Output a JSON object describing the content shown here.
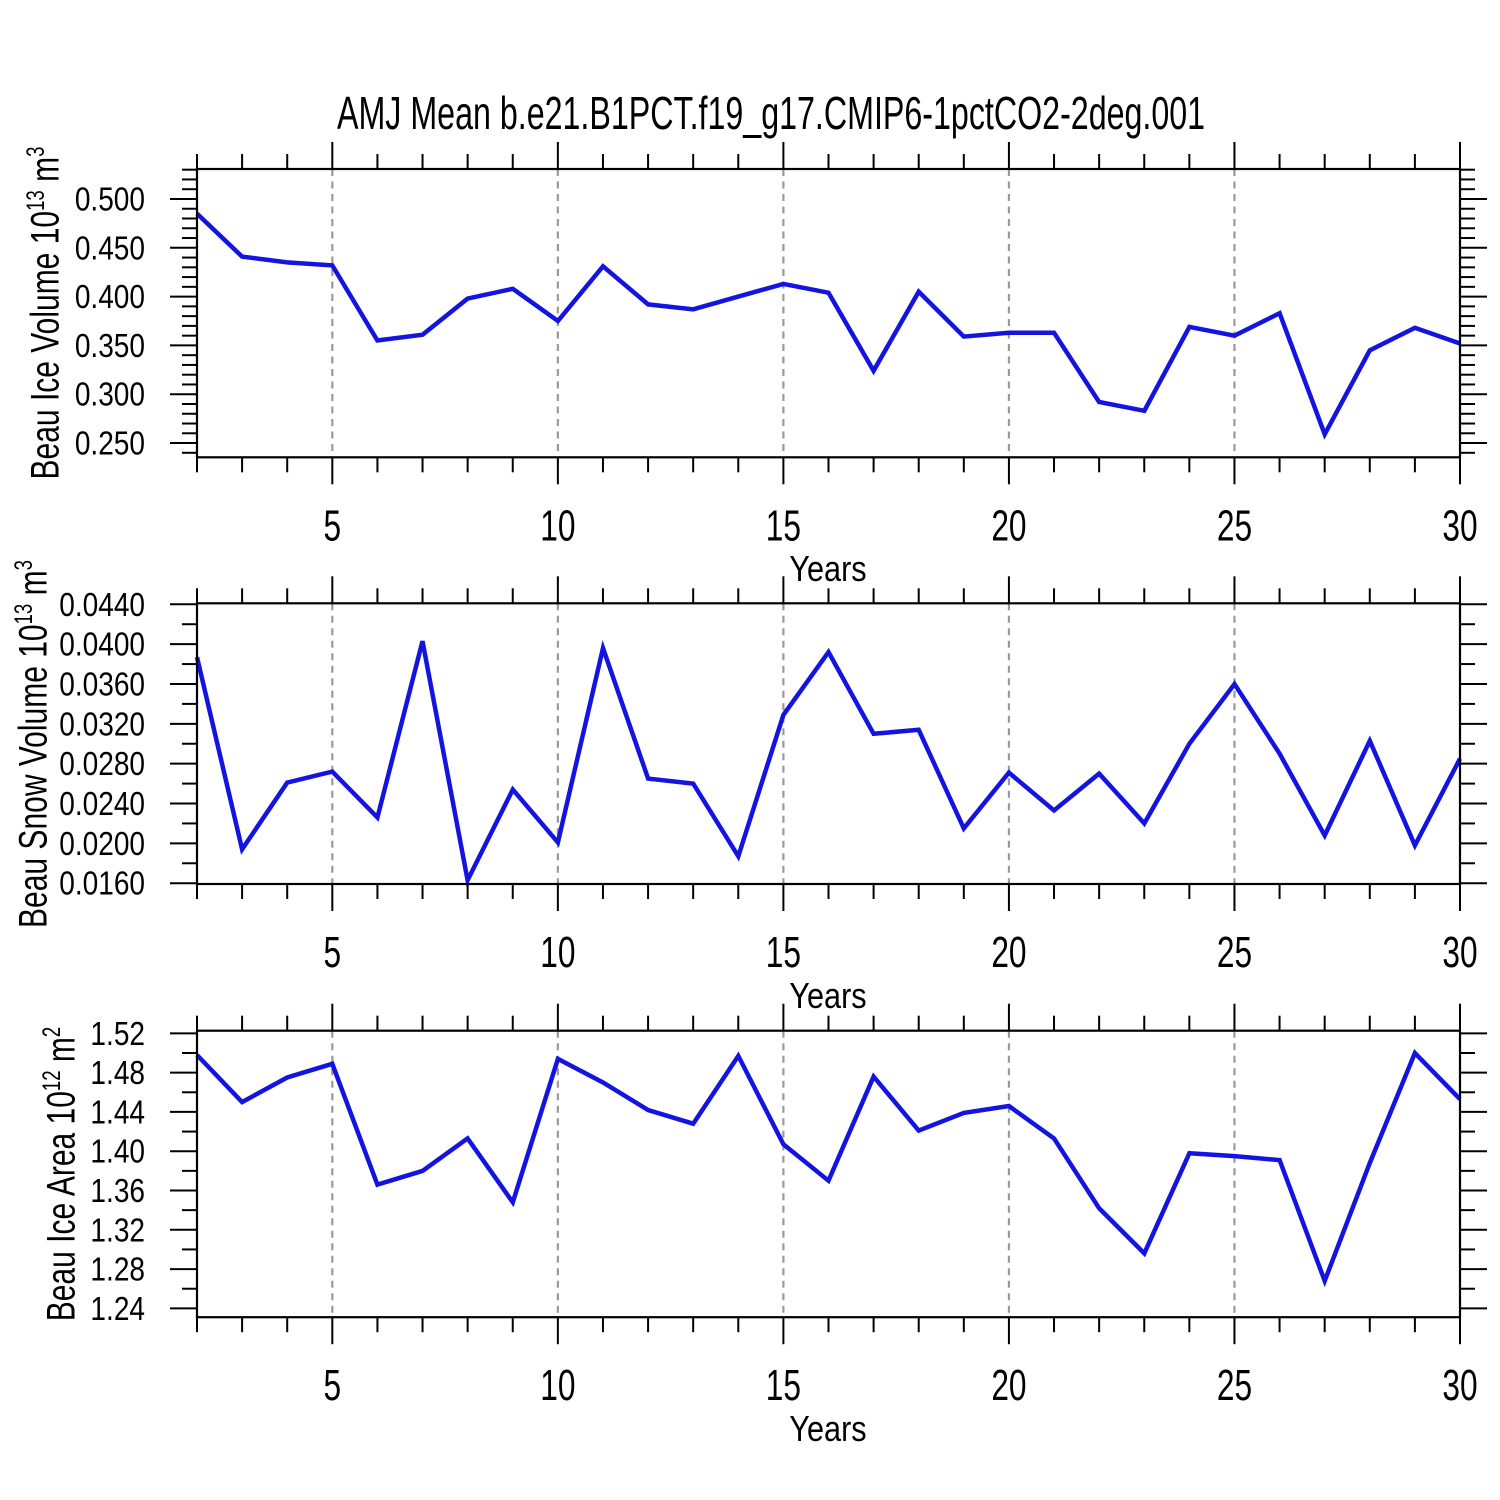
{
  "title": "AMJ Mean b.e21.B1PCT.f19_g17.CMIP6-1pctCO2-2deg.001",
  "xlabel": "Years",
  "chart_data": {
    "type": "line",
    "x": [
      2,
      3,
      4,
      5,
      6,
      7,
      8,
      9,
      10,
      11,
      12,
      13,
      14,
      15,
      16,
      17,
      18,
      19,
      20,
      21,
      22,
      23,
      24,
      25,
      26,
      27,
      28,
      29,
      30
    ],
    "xlim": [
      2,
      30
    ],
    "x_major_ticks": [
      5,
      10,
      15,
      20,
      25,
      30
    ],
    "x_major_labels": [
      "5",
      "10",
      "15",
      "20",
      "25",
      "30"
    ],
    "x_minor_step": 1,
    "x_grid_years": [
      5,
      10,
      15,
      20,
      25
    ],
    "line_color": "#1414e0",
    "grid_color": "#9a9a9a",
    "axis_color": "#000000",
    "charts": [
      {
        "name": "Beau Ice Volume",
        "ylabel_base": "Beau Ice Volume 10",
        "ylabel_exp": "13",
        "ylabel_unit": " m",
        "ylabel_unit_exp": "3",
        "ylim": [
          0.2354,
          0.5307
        ],
        "y_major_values": [
          0.5,
          0.45,
          0.4,
          0.35,
          0.3,
          0.25
        ],
        "y_major_labels": [
          "0.500",
          "0.450",
          "0.400",
          "0.350",
          "0.300",
          "0.250"
        ],
        "y_minor_step": 0.01,
        "values": [
          0.485,
          0.441,
          0.435,
          0.432,
          0.355,
          0.361,
          0.398,
          0.408,
          0.375,
          0.431,
          0.392,
          0.387,
          0.4,
          0.413,
          0.404,
          0.324,
          0.405,
          0.359,
          0.363,
          0.363,
          0.292,
          0.283,
          0.369,
          0.36,
          0.383,
          0.259,
          0.345,
          0.368,
          0.352
        ]
      },
      {
        "name": "Beau Snow Volume",
        "ylabel_base": "Beau Snow Volume 10",
        "ylabel_exp": "13",
        "ylabel_unit": " m",
        "ylabel_unit_exp": "3",
        "ylim": [
          0.01592,
          0.0441
        ],
        "y_major_values": [
          0.044,
          0.04,
          0.036,
          0.032,
          0.028,
          0.024,
          0.02,
          0.016
        ],
        "y_major_labels": [
          "0.0440",
          "0.0400",
          "0.0360",
          "0.0320",
          "0.0280",
          "0.0240",
          "0.0200",
          "0.0160"
        ],
        "y_minor_step": 0.002,
        "values": [
          0.0387,
          0.0194,
          0.0261,
          0.0272,
          0.0226,
          0.0403,
          0.0163,
          0.0254,
          0.0201,
          0.0396,
          0.0265,
          0.026,
          0.0187,
          0.0329,
          0.0392,
          0.031,
          0.0314,
          0.0215,
          0.0271,
          0.0233,
          0.027,
          0.022,
          0.03,
          0.036,
          0.029,
          0.0208,
          0.0303,
          0.0198,
          0.0285
        ]
      },
      {
        "name": "Beau Ice Area",
        "ylabel_base": "Beau Ice Area 10",
        "ylabel_exp": "12",
        "ylabel_unit": " m",
        "ylabel_unit_exp": "2",
        "ylim": [
          1.231,
          1.5227
        ],
        "y_major_values": [
          1.52,
          1.48,
          1.44,
          1.4,
          1.36,
          1.32,
          1.28,
          1.24
        ],
        "y_major_labels": [
          "1.52",
          "1.48",
          "1.44",
          "1.40",
          "1.36",
          "1.32",
          "1.28",
          "1.24"
        ],
        "y_minor_step": 0.02,
        "values": [
          1.498,
          1.45,
          1.475,
          1.489,
          1.366,
          1.38,
          1.413,
          1.348,
          1.494,
          1.47,
          1.442,
          1.428,
          1.497,
          1.407,
          1.37,
          1.476,
          1.421,
          1.439,
          1.446,
          1.413,
          1.342,
          1.296,
          1.398,
          1.395,
          1.391,
          1.268,
          1.388,
          1.5,
          1.453
        ]
      }
    ]
  }
}
